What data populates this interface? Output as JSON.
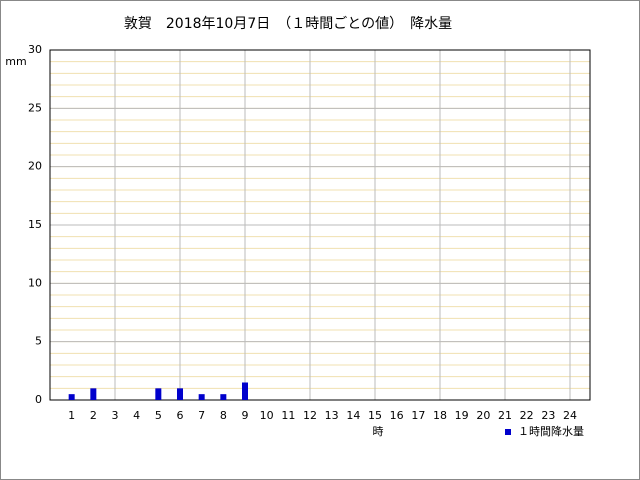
{
  "chart_data": {
    "type": "bar",
    "title": "敦賀　2018年10月7日　（１時間ごとの値）　降水量",
    "y_label": "mm",
    "x_label": "時",
    "categories": [
      "1",
      "2",
      "3",
      "4",
      "5",
      "6",
      "7",
      "8",
      "9",
      "10",
      "11",
      "12",
      "13",
      "14",
      "15",
      "16",
      "17",
      "18",
      "19",
      "20",
      "21",
      "22",
      "23",
      "24"
    ],
    "series": [
      {
        "name": "１時間降水量",
        "color": "#0000cc",
        "values": [
          0.5,
          1.0,
          0,
          0,
          1.0,
          1.0,
          0.5,
          0.5,
          1.5,
          null,
          null,
          null,
          null,
          null,
          null,
          null,
          null,
          null,
          null,
          null,
          null,
          null,
          null,
          null
        ]
      }
    ],
    "ylim": [
      0,
      30
    ],
    "yticks": [
      0,
      5,
      10,
      15,
      20,
      25,
      30
    ],
    "grid": true,
    "minor_grid": true,
    "legend": "bottom-right"
  }
}
